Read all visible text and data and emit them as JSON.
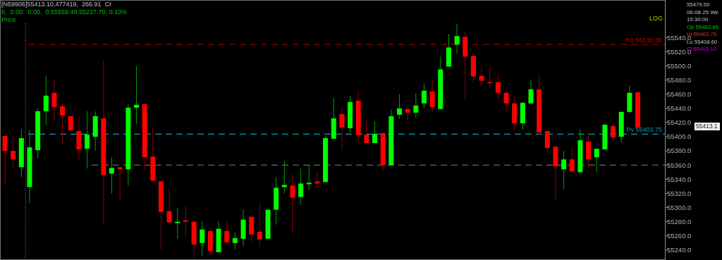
{
  "chart_data": {
    "type": "candlestick",
    "categories": [
      null,
      null,
      null,
      null,
      null,
      null,
      null,
      null,
      null,
      null,
      null,
      null,
      null,
      null,
      null,
      null,
      null,
      null,
      null,
      null,
      null,
      null,
      null,
      null,
      null,
      null,
      null,
      null,
      null,
      null,
      null,
      null,
      null,
      null,
      null,
      null,
      null,
      null,
      null,
      null,
      null,
      null,
      null,
      null,
      null,
      null,
      null,
      null,
      null,
      null,
      null,
      null,
      null,
      null,
      null,
      null,
      null,
      null,
      null,
      null,
      null,
      null,
      null,
      null,
      null,
      null,
      null,
      null,
      null,
      null,
      null,
      null,
      null,
      null,
      null,
      null,
      null,
      null
    ],
    "ohlc": [
      [
        55401,
        55401,
        55333,
        55380
      ],
      [
        55380,
        55401,
        55355,
        55368
      ],
      [
        55357,
        55411,
        55343,
        55398
      ],
      [
        55329,
        55410,
        55306,
        55385
      ],
      [
        55381,
        55440,
        55369,
        55436
      ],
      [
        55436,
        55486,
        55416,
        55458
      ],
      [
        55462,
        55481,
        55423,
        55442
      ],
      [
        55443,
        55448,
        55390,
        55430
      ],
      [
        55429,
        55429,
        55408,
        55409
      ],
      [
        55408,
        55428,
        55368,
        55382
      ],
      [
        55383,
        55436,
        55355,
        55403
      ],
      [
        55400,
        55436,
        55380,
        55429
      ],
      [
        55426,
        55508,
        55276,
        55346
      ],
      [
        55348,
        55371,
        55320,
        55356
      ],
      [
        55357,
        55357,
        55311,
        55354
      ],
      [
        55354,
        55446,
        55331,
        55441
      ],
      [
        55441,
        55500,
        55418,
        55445
      ],
      [
        55446,
        55446,
        55353,
        55371
      ],
      [
        55372,
        55412,
        55337,
        55338
      ],
      [
        55337,
        55337,
        55241,
        55294
      ],
      [
        55295,
        55326,
        55279,
        55279
      ],
      [
        55278,
        55300,
        55256,
        55280
      ],
      [
        55282,
        55302,
        55258,
        55280
      ],
      [
        55280,
        55280,
        55227.7,
        55248
      ],
      [
        55250,
        55281,
        55231,
        55269
      ],
      [
        55267,
        55271,
        55233,
        55239
      ],
      [
        55237,
        55281,
        55237,
        55270
      ],
      [
        55267,
        55280,
        55246,
        55251
      ],
      [
        55250,
        55265,
        55241,
        55257
      ],
      [
        55256,
        55297,
        55246,
        55283
      ],
      [
        55287,
        55288,
        55252,
        55262
      ],
      [
        55266,
        55305,
        55245,
        55255
      ],
      [
        55256,
        55297,
        55256,
        55297
      ],
      [
        55297,
        55343,
        55276,
        55328
      ],
      [
        55329,
        55366,
        55320,
        55332
      ],
      [
        55331,
        55347,
        55264,
        55314
      ],
      [
        55315,
        55355,
        55305,
        55334
      ],
      [
        55333,
        55361,
        55325,
        55335
      ],
      [
        55337,
        55352,
        55326,
        55334
      ],
      [
        55336,
        55400,
        55336,
        55398
      ],
      [
        55397,
        55455,
        55397,
        55426
      ],
      [
        55432,
        55441,
        55381,
        55413
      ],
      [
        55412,
        55458,
        55406,
        55449
      ],
      [
        55451,
        55464,
        55392,
        55402
      ],
      [
        55403,
        55425,
        55391,
        55391
      ],
      [
        55391,
        55422,
        55391,
        55404
      ],
      [
        55405,
        55406,
        55352,
        55360
      ],
      [
        55360,
        55438,
        55360,
        55429
      ],
      [
        55431,
        55460,
        55425,
        55440
      ],
      [
        55439,
        55441,
        55422,
        55434
      ],
      [
        55434,
        55461,
        55426,
        55444
      ],
      [
        55447,
        55475,
        55441,
        55465
      ],
      [
        55464,
        55481,
        55435,
        55442
      ],
      [
        55439,
        55513,
        55439,
        55495
      ],
      [
        55499,
        55545,
        55499,
        55526
      ],
      [
        55530,
        55559.4,
        55517,
        55542
      ],
      [
        55541,
        55548,
        55453,
        55513
      ],
      [
        55514,
        55518,
        55476,
        55485
      ],
      [
        55486,
        55499,
        55471,
        55479
      ],
      [
        55477,
        55499,
        55468,
        55476
      ],
      [
        55477,
        55489,
        55454,
        55462
      ],
      [
        55462,
        55465,
        55437,
        55447
      ],
      [
        55447,
        55457,
        55409,
        55419
      ],
      [
        55419,
        55448,
        55410,
        55448
      ],
      [
        55447,
        55481,
        55447,
        55467
      ],
      [
        55467,
        55489,
        55403,
        55406
      ],
      [
        55408,
        55408,
        55375,
        55384
      ],
      [
        55386,
        55386,
        55310,
        55358
      ],
      [
        55354,
        55380,
        55326,
        55368
      ],
      [
        55368,
        55386,
        55348,
        55351
      ],
      [
        55350,
        55410,
        55348,
        55395
      ],
      [
        55393,
        55406,
        55356,
        55368
      ],
      [
        55371,
        55383,
        55350,
        55383
      ],
      [
        55382,
        55420,
        55382,
        55417
      ],
      [
        55415,
        55418,
        55394,
        55399
      ],
      [
        55400,
        55436,
        55392,
        55435
      ],
      [
        55435,
        55472,
        55433,
        55462
      ],
      [
        55462.65,
        55463.75,
        55408.6,
        55413.1
      ]
    ],
    "ylim": [
      55228,
      55591
    ],
    "yticks": [
      {
        "value": 55240,
        "label": "55240.0"
      },
      {
        "value": 55260,
        "label": "55260.0"
      },
      {
        "value": 55280,
        "label": "55280.0"
      },
      {
        "value": 55300,
        "label": "55300.0"
      },
      {
        "value": 55320,
        "label": "55320.0"
      },
      {
        "value": 55340,
        "label": "55340.0"
      },
      {
        "value": 55360,
        "label": "55360.0"
      },
      {
        "value": 55380,
        "label": "55380.0"
      },
      {
        "value": 55400,
        "label": "55400.0"
      },
      {
        "value": 55420,
        "label": "55420.0"
      },
      {
        "value": 55440,
        "label": "55440.0"
      },
      {
        "value": 55460,
        "label": "55460.0"
      },
      {
        "value": 55480,
        "label": "55480.0"
      },
      {
        "value": 55500,
        "label": "55500.0"
      },
      {
        "value": 55520,
        "label": "55520.0"
      },
      {
        "value": 55540,
        "label": "55540.0"
      }
    ],
    "ref_lines": [
      {
        "axis": "y",
        "value": 55530.35,
        "label": "R1 55530.35",
        "color": "#c00000",
        "line_style": "dashed"
      },
      {
        "axis": "y",
        "value": 55403.75,
        "label": "Pv 55403.75",
        "color": "#00a0b0",
        "line_style": "dashed"
      },
      {
        "axis": "y",
        "value": 55360,
        "color": "#808080",
        "line_style": "dashed"
      }
    ],
    "annotations": [
      "[N59906]55413.10,477419,  266.91  Cr",
      "0,  0.00:  0.00,  0,55559.40,55227.70, 0.10%",
      "Price",
      "LOG",
      "55479.50",
      "06-08-25 We",
      "15:30:00",
      "Op 55462.65",
      "Hi 55463.75",
      "Lo 55408.60",
      "Cl 55413.10",
      "55413.1"
    ]
  }
}
